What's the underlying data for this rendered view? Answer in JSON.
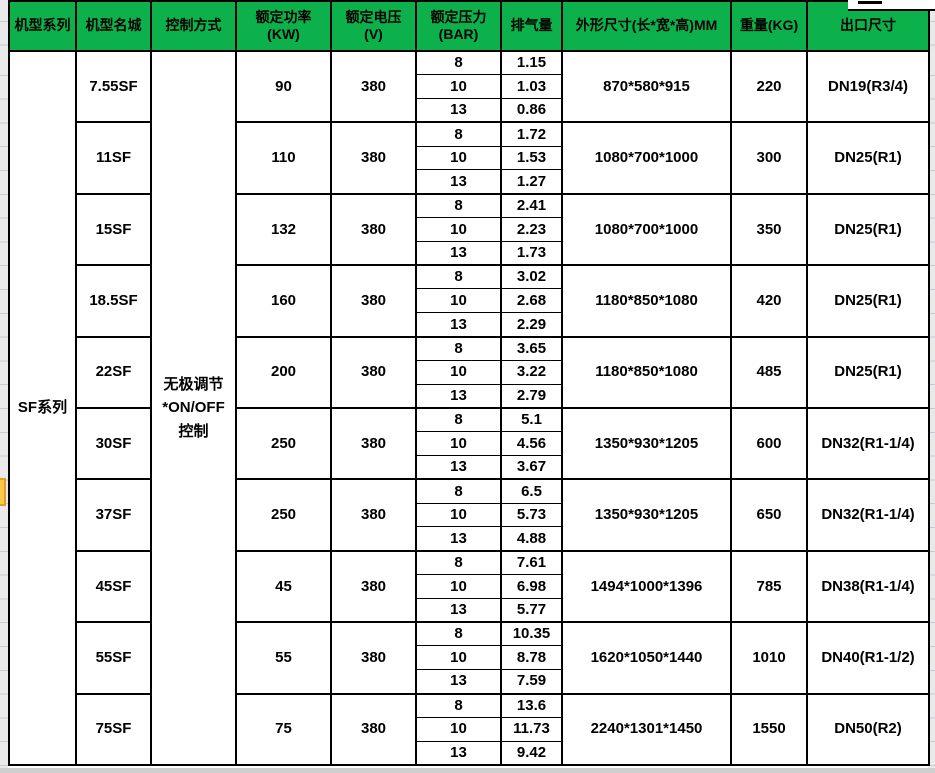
{
  "colors": {
    "header_green": "#0db14b",
    "grid_black": "#000000",
    "marker_fill": "#fbc94a",
    "marker_border": "#e49b2d"
  },
  "table": {
    "columns": [
      {
        "label": "机型系列"
      },
      {
        "label": "机型名城"
      },
      {
        "label": "控制方式"
      },
      {
        "label": "额定功率\n(KW)"
      },
      {
        "label": "额定电压\n(V)"
      },
      {
        "label": "额定压力\n(BAR)"
      },
      {
        "label": "排气量"
      },
      {
        "label": "外形尺寸(长*宽*高)MM"
      },
      {
        "label": "重量(KG)"
      },
      {
        "label": "出口尺寸"
      }
    ],
    "series_label": "SF系列",
    "control_label": "无极调节\n*ON/OFF\n控制",
    "models": [
      {
        "name": "7.55SF",
        "power": "90",
        "voltage": "380",
        "pressures": [
          "8",
          "10",
          "13"
        ],
        "displacements": [
          "1.15",
          "1.03",
          "0.86"
        ],
        "dimensions": "870*580*915",
        "weight": "220",
        "outlet": "DN19(R3/4)"
      },
      {
        "name": "11SF",
        "power": "110",
        "voltage": "380",
        "pressures": [
          "8",
          "10",
          "13"
        ],
        "displacements": [
          "1.72",
          "1.53",
          "1.27"
        ],
        "dimensions": "1080*700*1000",
        "weight": "300",
        "outlet": "DN25(R1)"
      },
      {
        "name": "15SF",
        "power": "132",
        "voltage": "380",
        "pressures": [
          "8",
          "10",
          "13"
        ],
        "displacements": [
          "2.41",
          "2.23",
          "1.73"
        ],
        "dimensions": "1080*700*1000",
        "weight": "350",
        "outlet": "DN25(R1)"
      },
      {
        "name": "18.5SF",
        "power": "160",
        "voltage": "380",
        "pressures": [
          "8",
          "10",
          "13"
        ],
        "displacements": [
          "3.02",
          "2.68",
          "2.29"
        ],
        "dimensions": "1180*850*1080",
        "weight": "420",
        "outlet": "DN25(R1)"
      },
      {
        "name": "22SF",
        "power": "200",
        "voltage": "380",
        "pressures": [
          "8",
          "10",
          "13"
        ],
        "displacements": [
          "3.65",
          "3.22",
          "2.79"
        ],
        "dimensions": "1180*850*1080",
        "weight": "485",
        "outlet": "DN25(R1)"
      },
      {
        "name": "30SF",
        "power": "250",
        "voltage": "380",
        "pressures": [
          "8",
          "10",
          "13"
        ],
        "displacements": [
          "5.1",
          "4.56",
          "3.67"
        ],
        "dimensions": "1350*930*1205",
        "weight": "600",
        "outlet": "DN32(R1-1/4)"
      },
      {
        "name": "37SF",
        "power": "250",
        "voltage": "380",
        "pressures": [
          "8",
          "10",
          "13"
        ],
        "displacements": [
          "6.5",
          "5.73",
          "4.88"
        ],
        "dimensions": "1350*930*1205",
        "weight": "650",
        "outlet": "DN32(R1-1/4)"
      },
      {
        "name": "45SF",
        "power": "45",
        "voltage": "380",
        "pressures": [
          "8",
          "10",
          "13"
        ],
        "displacements": [
          "7.61",
          "6.98",
          "5.77"
        ],
        "dimensions": "1494*1000*1396",
        "weight": "785",
        "outlet": "DN38(R1-1/4)"
      },
      {
        "name": "55SF",
        "power": "55",
        "voltage": "380",
        "pressures": [
          "8",
          "10",
          "13"
        ],
        "displacements": [
          "10.35",
          "8.78",
          "7.59"
        ],
        "dimensions": "1620*1050*1440",
        "weight": "1010",
        "outlet": "DN40(R1-1/2)"
      },
      {
        "name": "75SF",
        "power": "75",
        "voltage": "380",
        "pressures": [
          "8",
          "10",
          "13"
        ],
        "displacements": [
          "13.6",
          "11.73",
          "9.42"
        ],
        "dimensions": "2240*1301*1450",
        "weight": "1550",
        "outlet": "DN50(R2)"
      }
    ]
  }
}
